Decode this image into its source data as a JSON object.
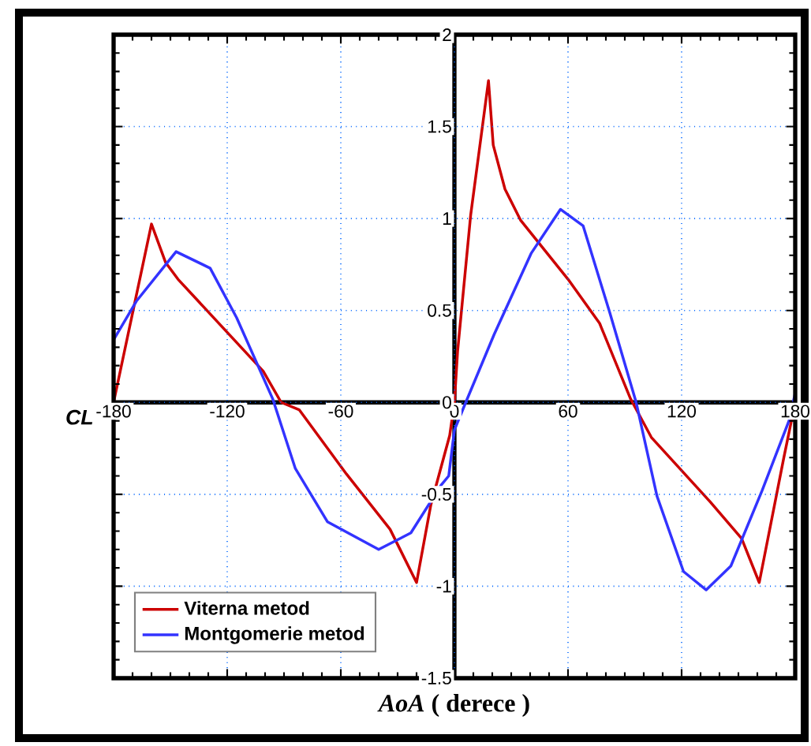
{
  "chart_data": {
    "type": "line",
    "xlabel": "*AoA* ( derece )",
    "ylabel": "CL",
    "xlim": [
      -180,
      180
    ],
    "ylim": [
      -1.5,
      2
    ],
    "xticks": [
      -180,
      -120,
      -60,
      0,
      60,
      120,
      180
    ],
    "yticks": [
      -1.5,
      -1,
      -0.5,
      0,
      0.5,
      1,
      1.5,
      2
    ],
    "grid": true,
    "legend": "bottom left",
    "marker": "none",
    "line_style": "solid",
    "series": [
      {
        "name": "Viterna metod",
        "color": "#cc0000",
        "x": [
          -180,
          -160,
          -152.5,
          -146,
          -101,
          -91.5,
          -82,
          -57,
          -34,
          -20,
          -12.5,
          -2.5,
          0,
          1.7,
          8.6,
          18,
          20.5,
          26.7,
          35,
          60,
          76.7,
          93,
          104,
          135,
          151.7,
          161,
          174,
          180
        ],
        "values": [
          0,
          0.97,
          0.76,
          0.67,
          0.17,
          0,
          -0.04,
          -0.39,
          -0.69,
          -0.98,
          -0.56,
          -0.18,
          0,
          0.28,
          1.02,
          1.75,
          1.4,
          1.16,
          0.99,
          0.67,
          0.43,
          0.02,
          -0.19,
          -0.54,
          -0.74,
          -0.98,
          -0.3,
          0
        ]
      },
      {
        "name": "Montgomerie metod",
        "color": "#3333ff",
        "x": [
          -180,
          -168,
          -147,
          -129,
          -115,
          -96,
          -84,
          -67,
          -40,
          -23,
          -7,
          -3,
          0,
          6,
          21,
          40.5,
          56,
          68,
          82,
          96,
          107,
          121,
          133,
          146,
          162.5,
          176.7,
          180
        ],
        "values": [
          0.34,
          0.55,
          0.82,
          0.73,
          0.46,
          0.02,
          -0.36,
          -0.65,
          -0.8,
          -0.71,
          -0.45,
          -0.4,
          -0.15,
          0,
          0.37,
          0.81,
          1.05,
          0.96,
          0.49,
          0,
          -0.51,
          -0.92,
          -1.02,
          -0.89,
          -0.48,
          -0.1,
          0.05
        ]
      }
    ]
  }
}
